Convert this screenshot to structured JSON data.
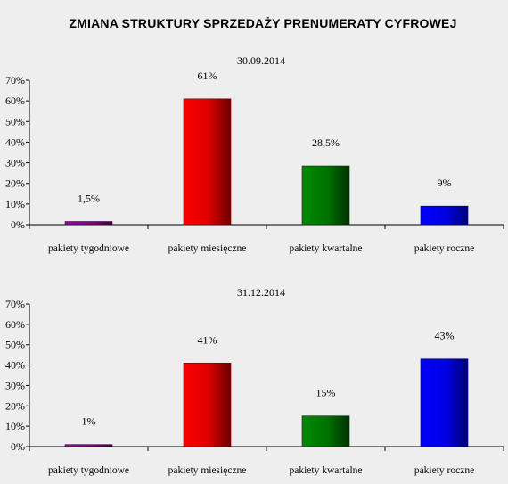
{
  "title": "ZMIANA STRUKTURY SPRZEDAŻY PRENUMERATY CYFROWEJ",
  "colors": {
    "pakiety_tygodniowe": "#800080",
    "pakiety_miesieczne": "#ff0000",
    "pakiety_kwartalne": "#008000",
    "pakiety_roczne": "#0000ff"
  },
  "chart_data": [
    {
      "type": "bar",
      "title": "30.09.2014",
      "categories": [
        "pakiety tygodniowe",
        "pakiety miesięczne",
        "pakiety kwartalne",
        "pakiety roczne"
      ],
      "values": [
        1.5,
        61,
        28.5,
        9
      ],
      "data_labels": [
        "1,5%",
        "61%",
        "28,5%",
        "9%"
      ],
      "yticks": [
        "0%",
        "10%",
        "20%",
        "30%",
        "40%",
        "50%",
        "60%",
        "70%"
      ],
      "ylim": [
        0,
        70
      ],
      "grid": false,
      "legend": "none"
    },
    {
      "type": "bar",
      "title": "31.12.2014",
      "categories": [
        "pakiety tygodniowe",
        "pakiety miesięczne",
        "pakiety kwartalne",
        "pakiety roczne"
      ],
      "values": [
        1,
        41,
        15,
        43
      ],
      "data_labels": [
        "1%",
        "41%",
        "15%",
        "43%"
      ],
      "yticks": [
        "0%",
        "10%",
        "20%",
        "30%",
        "40%",
        "50%",
        "60%",
        "70%"
      ],
      "ylim": [
        0,
        70
      ],
      "grid": false,
      "legend": "none"
    }
  ]
}
